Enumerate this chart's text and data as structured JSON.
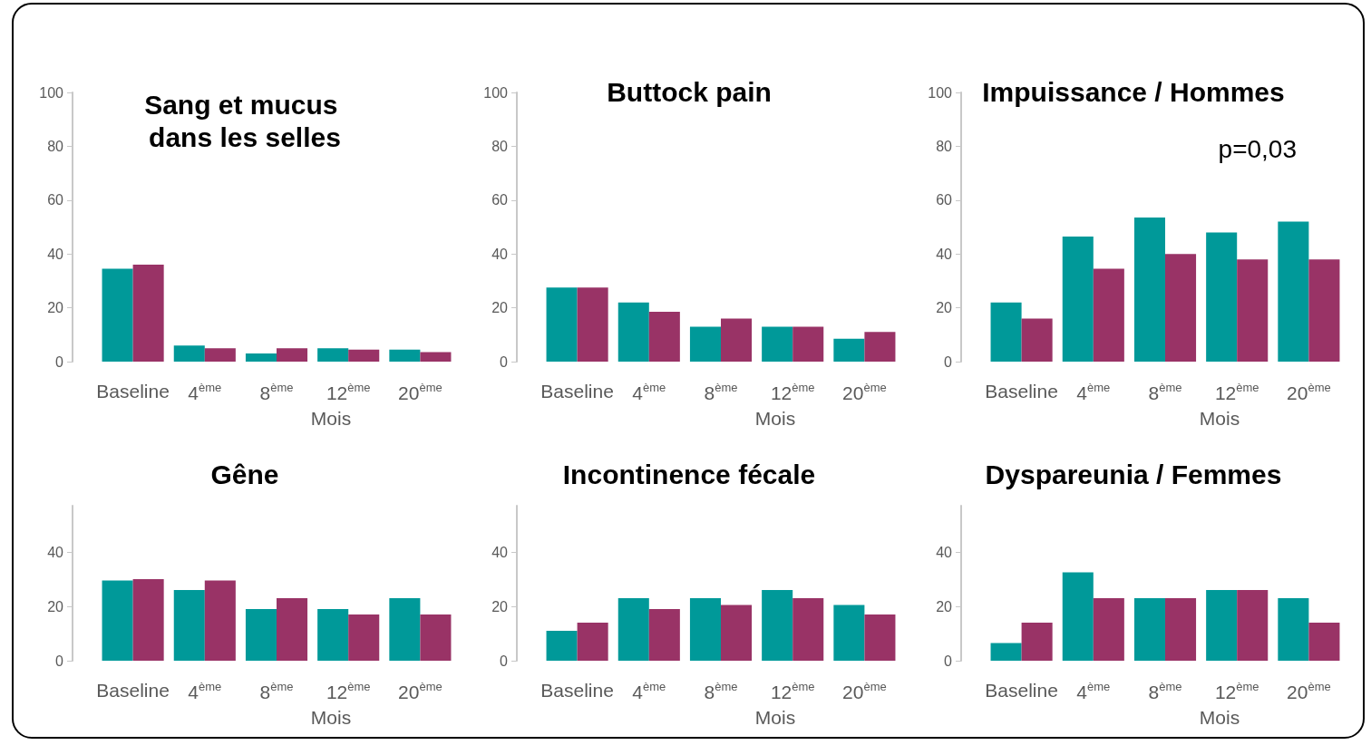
{
  "chart_data": [
    {
      "type": "bar",
      "title": "Sang et mucus dans les selles",
      "xlabel": "Mois",
      "categories": [
        "Baseline",
        "4$^{ème}$",
        "8$^{ème}$",
        "12$^{ème}$",
        "20$^{ème}$"
      ],
      "series": [
        {
          "color": "#009999",
          "values": [
            34.5,
            6,
            3,
            5,
            4.5
          ]
        },
        {
          "color": "#993366",
          "values": [
            36,
            5,
            5,
            4.5,
            3.5
          ]
        }
      ],
      "ylim": [
        0,
        100
      ],
      "yticks": [
        0,
        20,
        40,
        60,
        80,
        100
      ]
    },
    {
      "type": "bar",
      "title": "Buttock pain",
      "xlabel": "Mois",
      "categories": [
        "Baseline",
        "4$^{ème}$",
        "8$^{ème}$",
        "12$^{ème}$",
        "20$^{ème}$"
      ],
      "series": [
        {
          "color": "#009999",
          "values": [
            27.5,
            22,
            13,
            13,
            8.5
          ]
        },
        {
          "color": "#993366",
          "values": [
            27.5,
            18.5,
            16,
            13,
            11
          ]
        }
      ],
      "ylim": [
        0,
        100
      ],
      "yticks": [
        0,
        20,
        40,
        60,
        80,
        100
      ]
    },
    {
      "type": "bar",
      "title": "Impuissance / Hommes",
      "xlabel": "Mois",
      "categories": [
        "Baseline",
        "4$^{ème}$",
        "8$^{ème}$",
        "12$^{ème}$",
        "20$^{ème}$"
      ],
      "series": [
        {
          "color": "#009999",
          "values": [
            22,
            46.5,
            53.5,
            48,
            52
          ]
        },
        {
          "color": "#993366",
          "values": [
            16,
            34.5,
            40,
            38,
            38
          ]
        }
      ],
      "ylim": [
        0,
        100
      ],
      "yticks": [
        0,
        20,
        40,
        60,
        80,
        100
      ],
      "annotations": [
        "p=0,03"
      ]
    },
    {
      "type": "bar",
      "title": "Gêne",
      "xlabel": "Mois",
      "categories": [
        "Baseline",
        "4$^{ème}$",
        "8$^{ème}$",
        "12$^{ème}$",
        "20$^{ème}$"
      ],
      "series": [
        {
          "color": "#009999",
          "values": [
            29.5,
            26,
            19,
            19,
            23
          ]
        },
        {
          "color": "#993366",
          "values": [
            30,
            29.5,
            23,
            17,
            17
          ]
        }
      ],
      "ylim": [
        0,
        57
      ],
      "yticks": [
        0,
        20,
        40
      ]
    },
    {
      "type": "bar",
      "title": "Incontinence fécale",
      "xlabel": "Mois",
      "categories": [
        "Baseline",
        "4$^{ème}$",
        "8$^{ème}$",
        "12$^{ème}$",
        "20$^{ème}$"
      ],
      "series": [
        {
          "color": "#009999",
          "values": [
            11,
            23,
            23,
            26,
            20.5
          ]
        },
        {
          "color": "#993366",
          "values": [
            14,
            19,
            20.5,
            23,
            17
          ]
        }
      ],
      "ylim": [
        0,
        57
      ],
      "yticks": [
        0,
        20,
        40
      ]
    },
    {
      "type": "bar",
      "title": "Dyspareunia / Femmes",
      "xlabel": "Mois",
      "categories": [
        "Baseline",
        "4$^{ème}$",
        "8$^{ème}$",
        "12$^{ème}$",
        "20$^{ème}$"
      ],
      "series": [
        {
          "color": "#009999",
          "values": [
            6.5,
            32.5,
            23,
            26,
            23
          ]
        },
        {
          "color": "#993366",
          "values": [
            14,
            23,
            23,
            26,
            14
          ]
        }
      ],
      "ylim": [
        0,
        57
      ],
      "yticks": [
        0,
        20,
        40
      ]
    }
  ]
}
